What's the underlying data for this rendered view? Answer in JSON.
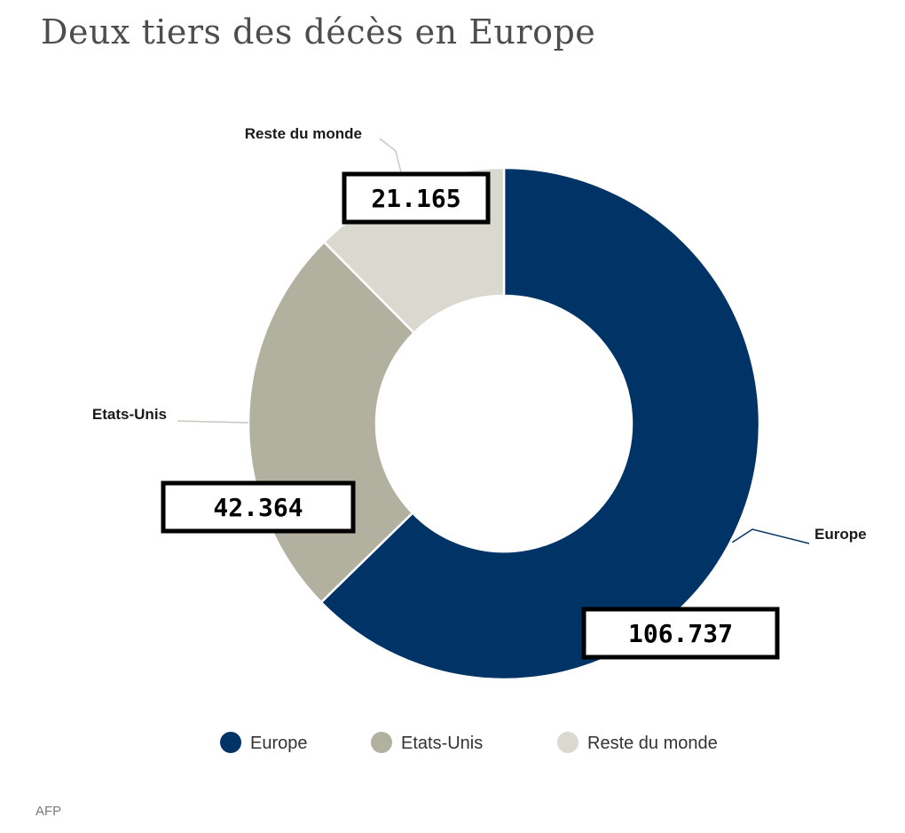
{
  "chart_data": {
    "type": "pie",
    "variant": "donut",
    "title": "Deux tiers des décès en Europe",
    "categories": [
      "Europe",
      "Etats-Unis",
      "Reste du monde"
    ],
    "values": [
      106737,
      42364,
      21165
    ],
    "value_labels": [
      "106.737",
      "42.364",
      "21.165"
    ],
    "colors": [
      "#003366",
      "#b2b1a0",
      "#d9d9cf"
    ],
    "legend": {
      "placement": "bottom",
      "entries": [
        "Europe",
        "Etats-Unis",
        "Reste du monde"
      ]
    }
  },
  "source": "AFP"
}
